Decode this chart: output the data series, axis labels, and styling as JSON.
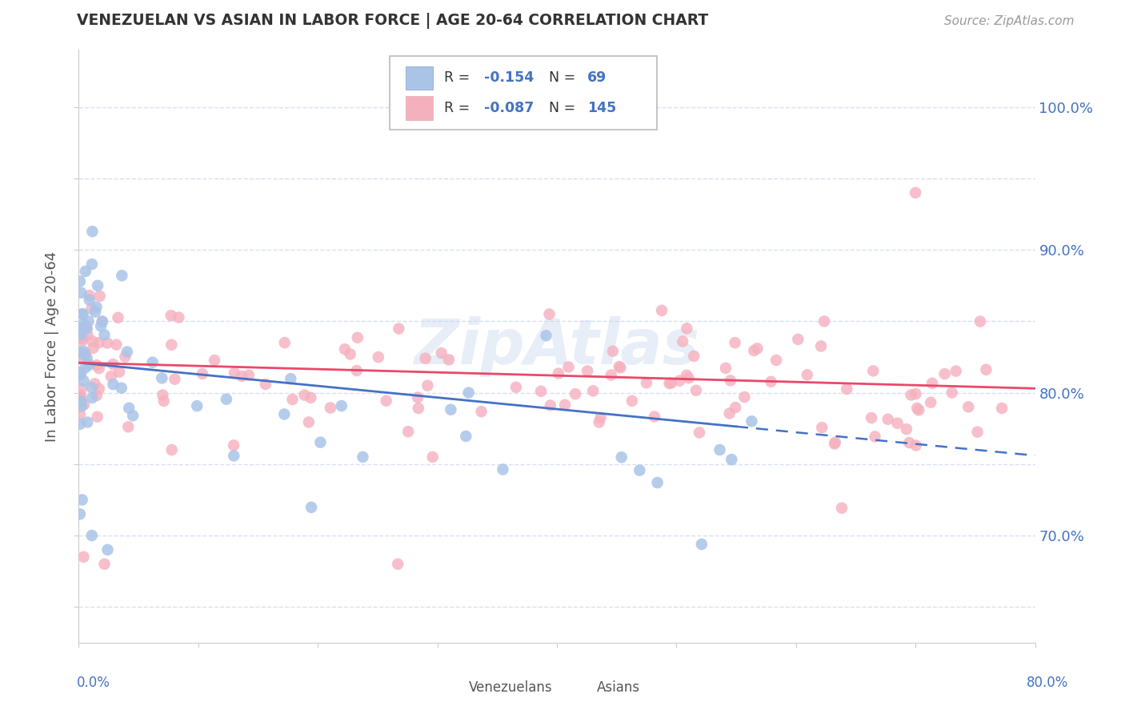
{
  "title": "VENEZUELAN VS ASIAN IN LABOR FORCE | AGE 20-64 CORRELATION CHART",
  "source": "Source: ZipAtlas.com",
  "ylabel": "In Labor Force | Age 20-64",
  "xmin": 0.0,
  "xmax": 0.8,
  "ymin": 0.625,
  "ymax": 1.04,
  "venezuelan_R": -0.154,
  "venezuelan_N": 69,
  "asian_R": -0.087,
  "asian_N": 145,
  "venezuelan_color": "#aac4e8",
  "asian_color": "#f5b0be",
  "venezuelan_trend_color": "#4472c4",
  "asian_trend_color": "#e8496a",
  "background_color": "#ffffff",
  "grid_color": "#d8dff0",
  "title_color": "#333333",
  "label_color": "#4472c4",
  "watermark": "ZipAtlas",
  "legend_text_color": "#333333",
  "legend_value_color": "#4472c4",
  "ytick_vals": [
    0.65,
    0.7,
    0.75,
    0.8,
    0.85,
    0.9,
    0.95,
    1.0
  ],
  "ytick_labels": [
    "",
    "70.0%",
    "",
    "80.0%",
    "",
    "90.0%",
    "",
    "100.0%"
  ]
}
